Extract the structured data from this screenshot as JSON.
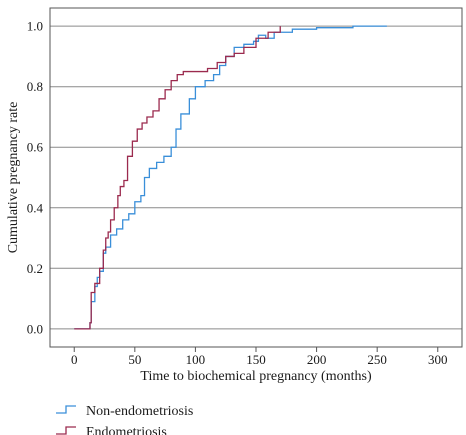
{
  "chart_data": {
    "type": "line",
    "title": "",
    "xlabel": "Time to biochemical pregnancy (months)",
    "ylabel": "Cumulative pregnancy rate",
    "xlim": [
      -20,
      320
    ],
    "ylim": [
      -0.06,
      1.06
    ],
    "x_ticks": [
      "0",
      "50",
      "100",
      "150",
      "200",
      "250",
      "300"
    ],
    "x_tick_values": [
      0,
      50,
      100,
      150,
      200,
      250,
      300
    ],
    "y_ticks": [
      "0.0",
      "0.2",
      "0.4",
      "0.6",
      "0.8",
      "1.0"
    ],
    "y_tick_values": [
      0,
      0.2,
      0.4,
      0.6,
      0.8,
      1.0
    ],
    "grid": "horizontal",
    "legend_position": "bottom-left",
    "series": [
      {
        "name": "Non-endometriosis",
        "color": "#3a8fd9",
        "x": [
          0,
          13,
          14,
          17,
          19,
          21,
          24,
          26,
          30,
          35,
          40,
          45,
          50,
          55,
          58,
          62,
          68,
          74,
          80,
          84,
          88,
          95,
          100,
          108,
          115,
          120,
          125,
          132,
          140,
          148,
          152,
          158,
          165,
          180,
          200,
          230,
          258
        ],
        "y": [
          0,
          0.02,
          0.09,
          0.14,
          0.17,
          0.19,
          0.25,
          0.27,
          0.31,
          0.33,
          0.36,
          0.38,
          0.42,
          0.44,
          0.5,
          0.53,
          0.55,
          0.57,
          0.6,
          0.66,
          0.71,
          0.76,
          0.8,
          0.82,
          0.84,
          0.87,
          0.9,
          0.93,
          0.94,
          0.95,
          0.97,
          0.96,
          0.98,
          0.99,
          0.995,
          1.0,
          1.0
        ]
      },
      {
        "name": "Endometriosis",
        "color": "#9b2a4e",
        "x": [
          0,
          13,
          14,
          17,
          21,
          24,
          26,
          28,
          30,
          33,
          36,
          38,
          41,
          44,
          48,
          52,
          56,
          60,
          65,
          70,
          75,
          80,
          85,
          90,
          100,
          110,
          118,
          125,
          132,
          140,
          150,
          160,
          170
        ],
        "y": [
          0,
          0.02,
          0.12,
          0.15,
          0.2,
          0.26,
          0.3,
          0.32,
          0.36,
          0.4,
          0.44,
          0.47,
          0.49,
          0.57,
          0.62,
          0.66,
          0.68,
          0.7,
          0.72,
          0.76,
          0.79,
          0.82,
          0.84,
          0.85,
          0.85,
          0.86,
          0.88,
          0.9,
          0.91,
          0.93,
          0.96,
          0.98,
          1.0
        ]
      }
    ]
  }
}
